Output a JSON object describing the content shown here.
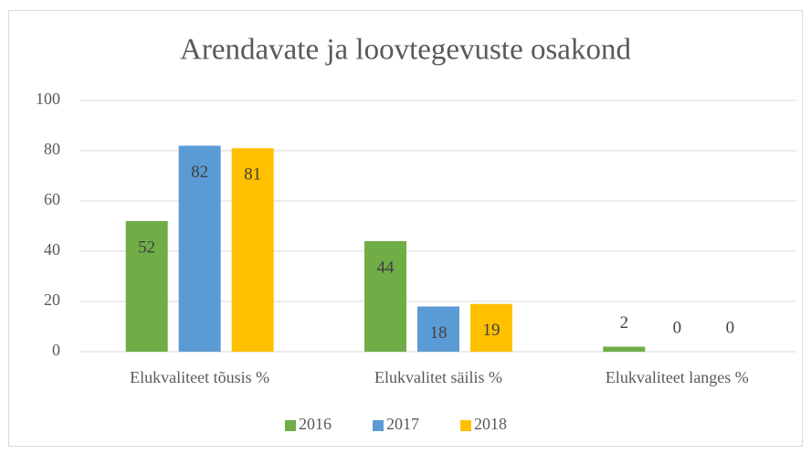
{
  "chart_data": {
    "type": "bar",
    "title": "Arendavate ja loovtegevuste osakond",
    "categories": [
      "Elukvaliteet tõusis %",
      "Elukvalitet säilis %",
      "Elukvaliteet langes %"
    ],
    "series": [
      {
        "name": "2016",
        "color": "#70ad47",
        "values": [
          52,
          44,
          2
        ]
      },
      {
        "name": "2017",
        "color": "#5b9bd5",
        "values": [
          82,
          18,
          0
        ]
      },
      {
        "name": "2018",
        "color": "#ffc000",
        "values": [
          81,
          19,
          0
        ]
      }
    ],
    "ylim": [
      0,
      100
    ],
    "yticks": [
      0,
      20,
      40,
      60,
      80,
      100
    ],
    "grid": true,
    "legend": "bottom"
  }
}
